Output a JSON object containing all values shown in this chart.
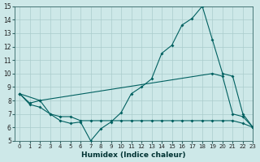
{
  "xlabel": "Humidex (Indice chaleur)",
  "bg_color": "#cde8e8",
  "grid_color": "#aacccc",
  "line_color": "#006060",
  "xlim": [
    -0.5,
    23
  ],
  "ylim": [
    5,
    15
  ],
  "x_ticks": [
    0,
    1,
    2,
    3,
    4,
    5,
    6,
    7,
    8,
    9,
    10,
    11,
    12,
    13,
    14,
    15,
    16,
    17,
    18,
    19,
    20,
    21,
    22,
    23
  ],
  "y_ticks": [
    5,
    6,
    7,
    8,
    9,
    10,
    11,
    12,
    13,
    14,
    15
  ],
  "line_spike_x": [
    0,
    1,
    2,
    3,
    4,
    5,
    6,
    7,
    8,
    9,
    10,
    11,
    12,
    13,
    14,
    15,
    16,
    17,
    18,
    19,
    20,
    21,
    22,
    23
  ],
  "line_spike_y": [
    8.5,
    7.8,
    8.0,
    7.0,
    6.5,
    6.3,
    6.4,
    5.0,
    5.9,
    6.4,
    7.1,
    8.5,
    9.0,
    9.6,
    11.5,
    12.1,
    13.6,
    14.1,
    15.0,
    12.5,
    10.0,
    9.8,
    7.0,
    6.0
  ],
  "line_upper_x": [
    0,
    2,
    19,
    20,
    21,
    22,
    23
  ],
  "line_upper_y": [
    8.5,
    8.0,
    10.0,
    9.8,
    7.0,
    6.8,
    6.0
  ],
  "line_lower_x": [
    0,
    1,
    2,
    3,
    4,
    5,
    6,
    7,
    8,
    9,
    10,
    11,
    12,
    13,
    14,
    15,
    16,
    17,
    18,
    19,
    20,
    21,
    22,
    23
  ],
  "line_lower_y": [
    8.5,
    7.7,
    7.5,
    7.0,
    6.8,
    6.8,
    6.5,
    6.5,
    6.5,
    6.5,
    6.5,
    6.5,
    6.5,
    6.5,
    6.5,
    6.5,
    6.5,
    6.5,
    6.5,
    6.5,
    6.5,
    6.5,
    6.3,
    6.0
  ]
}
